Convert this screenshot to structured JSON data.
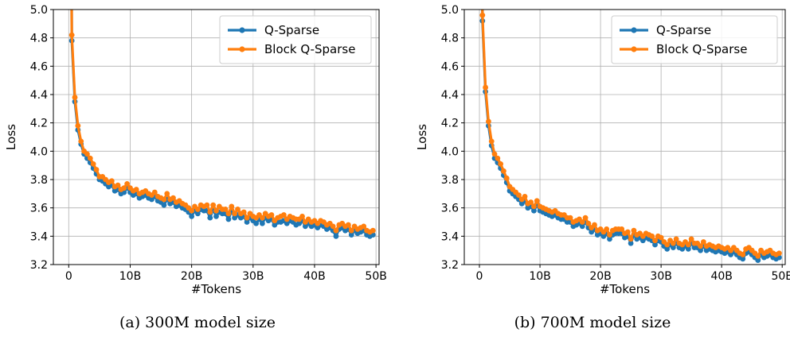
{
  "chart_data": [
    {
      "type": "line",
      "caption": "(a) 300M model size",
      "xlabel": "#Tokens",
      "ylabel": "Loss",
      "xlim": [
        -2.5,
        50.5
      ],
      "ylim": [
        3.2,
        5.0
      ],
      "x_ticks": [
        0,
        10,
        20,
        30,
        40,
        50
      ],
      "x_tick_labels": [
        "0",
        "10B",
        "20B",
        "30B",
        "40B",
        "50B"
      ],
      "y_ticks": [
        3.2,
        3.4,
        3.6,
        3.8,
        4.0,
        4.2,
        4.4,
        4.6,
        4.8,
        5.0
      ],
      "y_tick_labels": [
        "3.2",
        "3.4",
        "3.6",
        "3.8",
        "4.0",
        "4.2",
        "4.4",
        "4.6",
        "4.8",
        "5.0"
      ],
      "grid": true,
      "legend": "top-right",
      "x": [
        0.5,
        1.0,
        1.5,
        2.0,
        2.5,
        3.0,
        3.5,
        4.0,
        4.5,
        5.0,
        5.5,
        6.0,
        6.5,
        7.0,
        7.5,
        8.0,
        8.5,
        9.0,
        9.5,
        10.0,
        10.5,
        11.0,
        11.5,
        12.0,
        12.5,
        13.0,
        13.5,
        14.0,
        14.5,
        15.0,
        15.5,
        16.0,
        16.5,
        17.0,
        17.5,
        18.0,
        18.5,
        19.0,
        19.5,
        20.0,
        20.5,
        21.0,
        21.5,
        22.0,
        22.5,
        23.0,
        23.5,
        24.0,
        24.5,
        25.0,
        25.5,
        26.0,
        26.5,
        27.0,
        27.5,
        28.0,
        28.5,
        29.0,
        29.5,
        30.0,
        30.5,
        31.0,
        31.5,
        32.0,
        32.5,
        33.0,
        33.5,
        34.0,
        34.5,
        35.0,
        35.5,
        36.0,
        36.5,
        37.0,
        37.5,
        38.0,
        38.5,
        39.0,
        39.5,
        40.0,
        40.5,
        41.0,
        41.5,
        42.0,
        42.5,
        43.0,
        43.5,
        44.0,
        44.5,
        45.0,
        45.5,
        46.0,
        46.5,
        47.0,
        47.5,
        48.0,
        48.5,
        49.0,
        49.5
      ],
      "series": [
        {
          "name": "Q-Sparse",
          "color": "#1f77b4",
          "values": [
            4.78,
            4.35,
            4.15,
            4.05,
            3.98,
            3.95,
            3.92,
            3.88,
            3.84,
            3.8,
            3.79,
            3.77,
            3.75,
            3.76,
            3.72,
            3.73,
            3.7,
            3.71,
            3.74,
            3.71,
            3.69,
            3.7,
            3.67,
            3.68,
            3.69,
            3.67,
            3.66,
            3.68,
            3.65,
            3.64,
            3.62,
            3.66,
            3.63,
            3.64,
            3.61,
            3.62,
            3.6,
            3.59,
            3.57,
            3.54,
            3.58,
            3.56,
            3.59,
            3.58,
            3.58,
            3.53,
            3.59,
            3.54,
            3.57,
            3.56,
            3.56,
            3.52,
            3.58,
            3.53,
            3.55,
            3.53,
            3.54,
            3.5,
            3.53,
            3.51,
            3.49,
            3.52,
            3.49,
            3.53,
            3.51,
            3.52,
            3.48,
            3.5,
            3.5,
            3.51,
            3.49,
            3.51,
            3.5,
            3.48,
            3.49,
            3.51,
            3.47,
            3.49,
            3.47,
            3.48,
            3.46,
            3.48,
            3.47,
            3.45,
            3.46,
            3.44,
            3.4,
            3.45,
            3.46,
            3.44,
            3.45,
            3.41,
            3.44,
            3.42,
            3.43,
            3.44,
            3.41,
            3.4,
            3.41
          ]
        },
        {
          "name": "Block Q-Sparse",
          "color": "#ff7f0e",
          "values": [
            4.82,
            4.38,
            4.18,
            4.07,
            4.0,
            3.98,
            3.95,
            3.91,
            3.87,
            3.82,
            3.82,
            3.8,
            3.78,
            3.79,
            3.75,
            3.76,
            3.73,
            3.74,
            3.77,
            3.74,
            3.72,
            3.73,
            3.7,
            3.71,
            3.72,
            3.7,
            3.69,
            3.71,
            3.68,
            3.67,
            3.66,
            3.7,
            3.66,
            3.67,
            3.64,
            3.65,
            3.63,
            3.62,
            3.6,
            3.58,
            3.61,
            3.59,
            3.62,
            3.61,
            3.62,
            3.57,
            3.62,
            3.58,
            3.61,
            3.59,
            3.59,
            3.56,
            3.61,
            3.56,
            3.59,
            3.56,
            3.57,
            3.53,
            3.56,
            3.54,
            3.53,
            3.55,
            3.53,
            3.56,
            3.54,
            3.55,
            3.51,
            3.53,
            3.54,
            3.55,
            3.52,
            3.54,
            3.53,
            3.52,
            3.52,
            3.54,
            3.5,
            3.52,
            3.5,
            3.51,
            3.49,
            3.51,
            3.5,
            3.48,
            3.49,
            3.47,
            3.44,
            3.48,
            3.49,
            3.47,
            3.48,
            3.44,
            3.47,
            3.45,
            3.46,
            3.47,
            3.44,
            3.43,
            3.44
          ]
        }
      ]
    },
    {
      "type": "line",
      "caption": "(b) 700M model size",
      "xlabel": "#Tokens",
      "ylabel": "Loss",
      "xlim": [
        -2.5,
        50.5
      ],
      "ylim": [
        3.2,
        5.0
      ],
      "x_ticks": [
        0,
        10,
        20,
        30,
        40,
        50
      ],
      "x_tick_labels": [
        "0",
        "10B",
        "20B",
        "30B",
        "40B",
        "50B"
      ],
      "y_ticks": [
        3.2,
        3.4,
        3.6,
        3.8,
        4.0,
        4.2,
        4.4,
        4.6,
        4.8,
        5.0
      ],
      "y_tick_labels": [
        "3.2",
        "3.4",
        "3.6",
        "3.8",
        "4.0",
        "4.2",
        "4.4",
        "4.6",
        "4.8",
        "5.0"
      ],
      "grid": true,
      "legend": "top-right",
      "x": [
        0.5,
        1.0,
        1.5,
        2.0,
        2.5,
        3.0,
        3.5,
        4.0,
        4.5,
        5.0,
        5.5,
        6.0,
        6.5,
        7.0,
        7.5,
        8.0,
        8.5,
        9.0,
        9.5,
        10.0,
        10.5,
        11.0,
        11.5,
        12.0,
        12.5,
        13.0,
        13.5,
        14.0,
        14.5,
        15.0,
        15.5,
        16.0,
        16.5,
        17.0,
        17.5,
        18.0,
        18.5,
        19.0,
        19.5,
        20.0,
        20.5,
        21.0,
        21.5,
        22.0,
        22.5,
        23.0,
        23.5,
        24.0,
        24.5,
        25.0,
        25.5,
        26.0,
        26.5,
        27.0,
        27.5,
        28.0,
        28.5,
        29.0,
        29.5,
        30.0,
        30.5,
        31.0,
        31.5,
        32.0,
        32.5,
        33.0,
        33.5,
        34.0,
        34.5,
        35.0,
        35.5,
        36.0,
        36.5,
        37.0,
        37.5,
        38.0,
        38.5,
        39.0,
        39.5,
        40.0,
        40.5,
        41.0,
        41.5,
        42.0,
        42.5,
        43.0,
        43.5,
        44.0,
        44.5,
        45.0,
        45.5,
        46.0,
        46.5,
        47.0,
        47.5,
        48.0,
        48.5,
        49.0,
        49.5
      ],
      "series": [
        {
          "name": "Q-Sparse",
          "color": "#1f77b4",
          "values": [
            4.92,
            4.42,
            4.18,
            4.04,
            3.95,
            3.92,
            3.88,
            3.83,
            3.78,
            3.72,
            3.7,
            3.68,
            3.66,
            3.63,
            3.65,
            3.6,
            3.61,
            3.58,
            3.62,
            3.58,
            3.57,
            3.56,
            3.55,
            3.54,
            3.55,
            3.53,
            3.52,
            3.52,
            3.5,
            3.5,
            3.47,
            3.48,
            3.49,
            3.47,
            3.5,
            3.46,
            3.43,
            3.45,
            3.41,
            3.42,
            3.4,
            3.42,
            3.38,
            3.41,
            3.42,
            3.42,
            3.42,
            3.39,
            3.4,
            3.35,
            3.41,
            3.38,
            3.39,
            3.37,
            3.39,
            3.38,
            3.37,
            3.34,
            3.37,
            3.36,
            3.33,
            3.31,
            3.34,
            3.32,
            3.35,
            3.32,
            3.31,
            3.33,
            3.31,
            3.35,
            3.32,
            3.32,
            3.3,
            3.33,
            3.3,
            3.31,
            3.3,
            3.29,
            3.3,
            3.29,
            3.28,
            3.29,
            3.27,
            3.29,
            3.27,
            3.25,
            3.24,
            3.28,
            3.29,
            3.27,
            3.25,
            3.23,
            3.27,
            3.25,
            3.26,
            3.27,
            3.25,
            3.24,
            3.25
          ]
        },
        {
          "name": "Block Q-Sparse",
          "color": "#ff7f0e",
          "values": [
            4.96,
            4.45,
            4.21,
            4.07,
            3.98,
            3.95,
            3.91,
            3.86,
            3.81,
            3.75,
            3.73,
            3.71,
            3.69,
            3.66,
            3.68,
            3.63,
            3.64,
            3.61,
            3.65,
            3.61,
            3.6,
            3.59,
            3.58,
            3.57,
            3.58,
            3.56,
            3.55,
            3.55,
            3.53,
            3.53,
            3.5,
            3.51,
            3.52,
            3.5,
            3.53,
            3.49,
            3.46,
            3.48,
            3.44,
            3.45,
            3.43,
            3.45,
            3.41,
            3.44,
            3.45,
            3.45,
            3.45,
            3.42,
            3.43,
            3.38,
            3.44,
            3.41,
            3.42,
            3.4,
            3.42,
            3.41,
            3.4,
            3.37,
            3.4,
            3.39,
            3.36,
            3.34,
            3.37,
            3.35,
            3.38,
            3.35,
            3.34,
            3.36,
            3.34,
            3.38,
            3.35,
            3.35,
            3.33,
            3.36,
            3.33,
            3.34,
            3.33,
            3.32,
            3.33,
            3.32,
            3.31,
            3.32,
            3.3,
            3.32,
            3.3,
            3.28,
            3.27,
            3.31,
            3.32,
            3.3,
            3.28,
            3.26,
            3.3,
            3.28,
            3.29,
            3.3,
            3.28,
            3.27,
            3.28
          ]
        }
      ]
    }
  ]
}
